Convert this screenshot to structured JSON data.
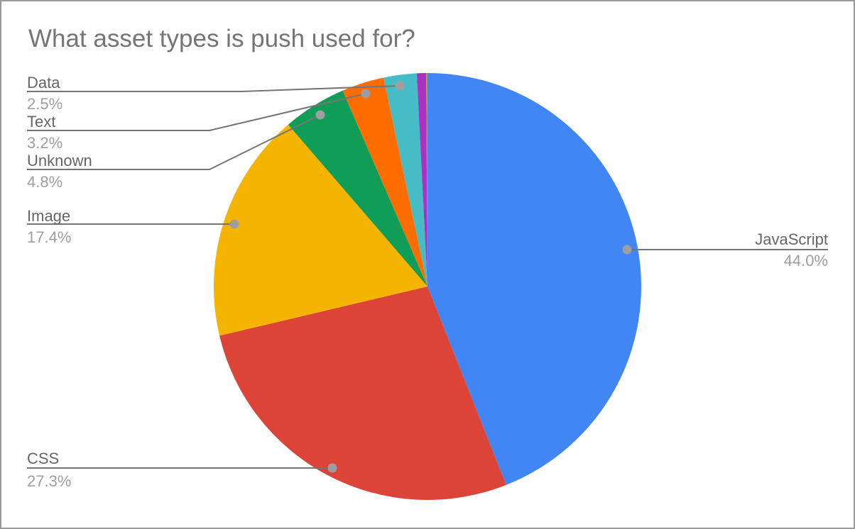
{
  "frame": {
    "background_color": "#ffffff",
    "border_color": "#9a9a9a"
  },
  "chart_data": {
    "type": "pie",
    "title": "What asset types is push used for?",
    "title_color": "#757575",
    "start_angle_deg": 0,
    "direction": "clockwise",
    "legend_position": "none",
    "label_style": "outside-callout",
    "callout_line_color": "#757575",
    "callout_dot_color": "#9e9e9e",
    "label_name_color": "#666666",
    "label_pct_color": "#9e9e9e",
    "slices": [
      {
        "label": "JavaScript",
        "pct_label": "44.0%",
        "value": 44.0,
        "color": "#4285F4"
      },
      {
        "label": "CSS",
        "pct_label": "27.3%",
        "value": 27.3,
        "color": "#DB4437"
      },
      {
        "label": "Image",
        "pct_label": "17.4%",
        "value": 17.4,
        "color": "#F4B400"
      },
      {
        "label": "Unknown",
        "pct_label": "4.8%",
        "value": 4.8,
        "color": "#0F9D58"
      },
      {
        "label": "Text",
        "pct_label": "3.2%",
        "value": 3.2,
        "color": "#FF6D00"
      },
      {
        "label": "Data",
        "pct_label": "2.5%",
        "value": 2.5,
        "color": "#46BDC6"
      },
      {
        "label": "",
        "pct_label": "",
        "value": 0.7,
        "color": "#AB30C4"
      },
      {
        "label": "",
        "pct_label": "",
        "value": 0.1,
        "color": "#B3A112"
      }
    ]
  }
}
